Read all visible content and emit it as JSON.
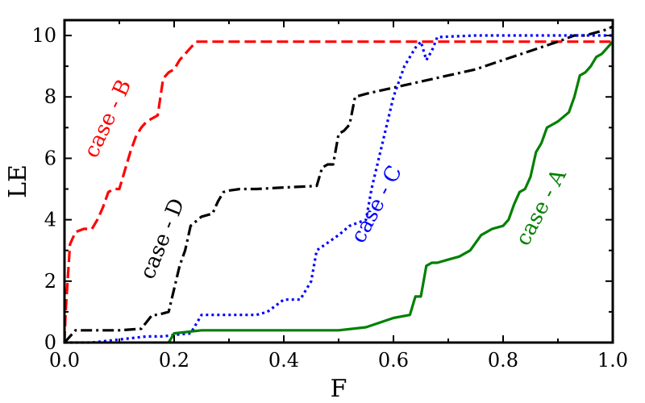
{
  "chart_data": {
    "type": "line",
    "xlabel": "F",
    "ylabel": "LE",
    "xlim": [
      0,
      1.0
    ],
    "ylim": [
      0,
      10.5
    ],
    "xticks": [
      0.0,
      0.2,
      0.4,
      0.6,
      0.8,
      1.0
    ],
    "xtick_labels": [
      "0.0",
      "0.2",
      "0.4",
      "0.6",
      "0.8",
      "1.0"
    ],
    "yticks": [
      0,
      2,
      4,
      6,
      8,
      10
    ],
    "ytick_labels": [
      "0",
      "2",
      "4",
      "6",
      "8",
      "10"
    ],
    "grid": false,
    "series": [
      {
        "key": "B",
        "color": "#ff0000",
        "dash": "dashed",
        "x": [
          0.0,
          0.002,
          0.01,
          0.02,
          0.035,
          0.05,
          0.06,
          0.07,
          0.08,
          0.09,
          0.1,
          0.11,
          0.12,
          0.13,
          0.14,
          0.15,
          0.16,
          0.17,
          0.18,
          0.19,
          0.2,
          0.21,
          0.22,
          0.23,
          0.24,
          0.3,
          0.4,
          0.5,
          0.6,
          0.7,
          0.8,
          0.9,
          1.0
        ],
        "y": [
          0.0,
          1.0,
          3.2,
          3.6,
          3.7,
          3.7,
          4.0,
          4.4,
          4.9,
          5.0,
          5.0,
          5.6,
          6.2,
          6.7,
          7.0,
          7.2,
          7.3,
          7.4,
          8.6,
          8.8,
          8.9,
          9.2,
          9.4,
          9.6,
          9.8,
          9.8,
          9.8,
          9.8,
          9.8,
          9.8,
          9.8,
          9.8,
          9.8
        ]
      },
      {
        "key": "D",
        "color": "#000000",
        "dash": "dashdot",
        "x": [
          0.0,
          0.01,
          0.02,
          0.05,
          0.1,
          0.14,
          0.16,
          0.17,
          0.19,
          0.21,
          0.22,
          0.23,
          0.25,
          0.27,
          0.28,
          0.29,
          0.3,
          0.32,
          0.35,
          0.4,
          0.46,
          0.47,
          0.48,
          0.49,
          0.5,
          0.51,
          0.52,
          0.53,
          0.55,
          0.6,
          0.65,
          0.7,
          0.75,
          0.8,
          0.85,
          0.9,
          0.93,
          0.95,
          0.97,
          0.99,
          1.0
        ],
        "y": [
          0.0,
          0.2,
          0.4,
          0.4,
          0.4,
          0.45,
          0.9,
          0.9,
          1.0,
          2.5,
          3.0,
          3.8,
          4.1,
          4.2,
          4.6,
          4.9,
          4.95,
          5.0,
          5.0,
          5.05,
          5.1,
          5.7,
          5.8,
          5.8,
          6.8,
          6.9,
          7.1,
          8.0,
          8.1,
          8.3,
          8.5,
          8.7,
          8.9,
          9.2,
          9.5,
          9.8,
          10.0,
          10.0,
          10.1,
          10.2,
          10.3
        ]
      },
      {
        "key": "C",
        "color": "#0000ff",
        "dash": "dotted",
        "x": [
          0.0,
          0.05,
          0.1,
          0.15,
          0.18,
          0.2,
          0.23,
          0.25,
          0.26,
          0.3,
          0.35,
          0.37,
          0.4,
          0.43,
          0.45,
          0.46,
          0.5,
          0.52,
          0.55,
          0.56,
          0.58,
          0.6,
          0.62,
          0.64,
          0.65,
          0.66,
          0.67,
          0.68,
          0.75,
          0.8,
          0.9,
          1.0
        ],
        "y": [
          0.0,
          0.0,
          0.1,
          0.2,
          0.2,
          0.25,
          0.3,
          0.9,
          0.9,
          0.9,
          0.9,
          1.0,
          1.4,
          1.4,
          2.0,
          3.0,
          3.5,
          3.8,
          4.0,
          5.0,
          6.5,
          8.0,
          9.0,
          9.6,
          9.8,
          9.2,
          9.5,
          9.95,
          10.0,
          10.0,
          10.0,
          10.0
        ]
      },
      {
        "key": "A",
        "color": "#008000",
        "dash": "solid",
        "x": [
          0.19,
          0.2,
          0.25,
          0.3,
          0.4,
          0.5,
          0.55,
          0.6,
          0.63,
          0.64,
          0.65,
          0.66,
          0.67,
          0.68,
          0.7,
          0.72,
          0.74,
          0.76,
          0.78,
          0.8,
          0.81,
          0.82,
          0.83,
          0.84,
          0.85,
          0.86,
          0.87,
          0.88,
          0.89,
          0.9,
          0.92,
          0.93,
          0.94,
          0.95,
          0.96,
          0.97,
          0.98,
          0.99,
          1.0
        ],
        "y": [
          0.0,
          0.3,
          0.4,
          0.4,
          0.4,
          0.4,
          0.5,
          0.8,
          0.9,
          1.5,
          1.5,
          2.5,
          2.6,
          2.6,
          2.7,
          2.8,
          3.0,
          3.5,
          3.7,
          3.8,
          4.0,
          4.5,
          4.9,
          5.0,
          5.4,
          6.2,
          6.5,
          7.0,
          7.1,
          7.2,
          7.5,
          8.0,
          8.7,
          8.8,
          9.0,
          9.3,
          9.4,
          9.6,
          9.8
        ]
      }
    ],
    "annotations": [
      {
        "text": "case - B",
        "color": "#ff0000",
        "x": 0.09,
        "y": 7.2,
        "rotation": -65
      },
      {
        "text": "case - D",
        "color": "#000000",
        "x": 0.19,
        "y": 3.3,
        "rotation": -68
      },
      {
        "text": "case - C",
        "color": "#0000ff",
        "x": 0.58,
        "y": 4.4,
        "rotation": -62
      },
      {
        "text": "case - A",
        "color": "#008000",
        "x": 0.88,
        "y": 4.3,
        "rotation": -62
      }
    ]
  }
}
